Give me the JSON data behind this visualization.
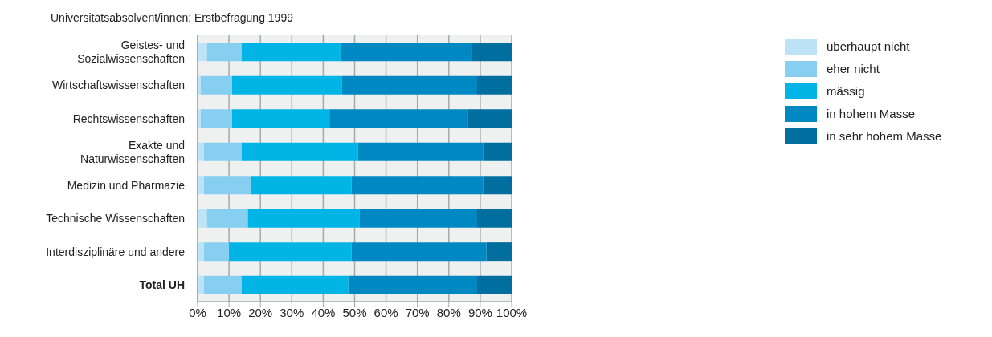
{
  "chart_data": {
    "type": "bar",
    "orientation": "horizontal",
    "stacked": true,
    "title": "Universitätsabsolvent/innen; Erstbefragung 1999",
    "categories": [
      "Geistes- und Sozialwissenschaften",
      "Wirtschaftswissenschaften",
      "Rechtswissenschaften",
      "Exakte und Naturwissenschaften",
      "Medizin und Pharmazie",
      "Technische Wissenschaften",
      "Interdisziplinäre und andere",
      "Total UH"
    ],
    "series": [
      {
        "name": "überhaupt nicht",
        "color": "#bde4f6",
        "values": [
          3,
          1,
          1,
          2,
          2,
          3,
          2,
          2
        ]
      },
      {
        "name": "eher nicht",
        "color": "#86cff0",
        "values": [
          11,
          10,
          10,
          12,
          15,
          13,
          8,
          12
        ]
      },
      {
        "name": "mässig",
        "color": "#00b4e6",
        "values": [
          31.5,
          35,
          31,
          37,
          32,
          35.5,
          39,
          34
        ]
      },
      {
        "name": "in hohem Masse",
        "color": "#0088c2",
        "values": [
          41.5,
          43,
          44,
          40,
          42,
          37.5,
          43,
          41
        ]
      },
      {
        "name": "in sehr hohem Masse",
        "color": "#006fa0",
        "values": [
          13,
          11,
          14,
          9,
          9,
          11,
          8,
          11
        ]
      }
    ],
    "xlim": [
      0,
      100
    ],
    "xticks": [
      {
        "value": 0,
        "label": "0%"
      },
      {
        "value": 10,
        "label": "10%"
      },
      {
        "value": 20,
        "label": "20%"
      },
      {
        "value": 30,
        "label": "30%"
      },
      {
        "value": 40,
        "label": "40%"
      },
      {
        "value": 50,
        "label": "50%"
      },
      {
        "value": 60,
        "label": "60%"
      },
      {
        "value": 70,
        "label": "70%"
      },
      {
        "value": 80,
        "label": "80%"
      },
      {
        "value": 90,
        "label": "90%"
      },
      {
        "value": 100,
        "label": "100%"
      }
    ],
    "grid": "x",
    "legend": "right"
  }
}
